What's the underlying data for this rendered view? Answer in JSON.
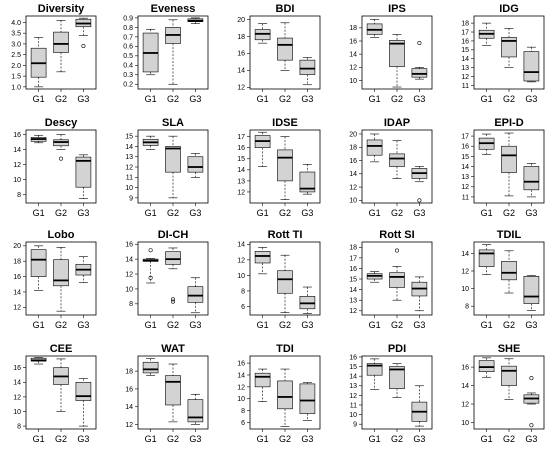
{
  "chart_data": [
    {
      "type": "box",
      "title": "Diversity",
      "categories": [
        "G1",
        "G2",
        "G3"
      ],
      "ylim": [
        0.9,
        4.3
      ],
      "yticks": [
        "1.0",
        "1.5",
        "2.0",
        "2.5",
        "3.0",
        "3.5",
        "4.0"
      ],
      "boxes": [
        {
          "min": 1.0,
          "q1": 1.45,
          "median": 2.1,
          "q3": 2.8,
          "max": 3.3,
          "outliers": []
        },
        {
          "min": 1.7,
          "q1": 2.6,
          "median": 3.0,
          "q3": 3.55,
          "max": 4.1,
          "outliers": []
        },
        {
          "min": 3.4,
          "q1": 3.8,
          "median": 3.95,
          "q3": 4.15,
          "max": 4.2,
          "outliers": [
            2.9
          ]
        }
      ]
    },
    {
      "type": "box",
      "title": "Eveness",
      "categories": [
        "G1",
        "G2",
        "G3"
      ],
      "ylim": [
        0.15,
        0.92
      ],
      "yticks": [
        "0.2",
        "0.3",
        "0.4",
        "0.5",
        "0.6",
        "0.7",
        "0.8",
        "0.9"
      ],
      "boxes": [
        {
          "min": 0.3,
          "q1": 0.33,
          "median": 0.53,
          "q3": 0.74,
          "max": 0.78,
          "outliers": []
        },
        {
          "min": 0.2,
          "q1": 0.63,
          "median": 0.72,
          "q3": 0.8,
          "max": 0.88,
          "outliers": []
        },
        {
          "min": 0.84,
          "q1": 0.86,
          "median": 0.87,
          "q3": 0.89,
          "max": 0.9,
          "outliers": []
        }
      ]
    },
    {
      "type": "box",
      "title": "BDI",
      "categories": [
        "G1",
        "G2",
        "G3"
      ],
      "ylim": [
        11.8,
        20.4
      ],
      "yticks": [
        "12",
        "14",
        "16",
        "18",
        "20"
      ],
      "boxes": [
        {
          "min": 17.2,
          "q1": 17.6,
          "median": 18.3,
          "q3": 18.8,
          "max": 19.5,
          "outliers": []
        },
        {
          "min": 14.0,
          "q1": 15.2,
          "median": 17.0,
          "q3": 17.8,
          "max": 19.6,
          "outliers": []
        },
        {
          "min": 12.3,
          "q1": 13.5,
          "median": 14.2,
          "q3": 15.2,
          "max": 15.5,
          "outliers": []
        }
      ]
    },
    {
      "type": "box",
      "title": "IPS",
      "categories": [
        "G1",
        "G2",
        "G3"
      ],
      "ylim": [
        8.7,
        19.8
      ],
      "yticks": [
        "10",
        "12",
        "14",
        "16",
        "18"
      ],
      "boxes": [
        {
          "min": 16.5,
          "q1": 17.0,
          "median": 17.7,
          "q3": 18.6,
          "max": 19.3,
          "outliers": []
        },
        {
          "min": 9.0,
          "q1": 12.1,
          "median": 15.6,
          "q3": 16.1,
          "max": 17.0,
          "outliers": []
        },
        {
          "min": 10.2,
          "q1": 10.5,
          "median": 11.0,
          "q3": 11.8,
          "max": 12.0,
          "outliers": [
            15.7
          ]
        }
      ]
    },
    {
      "type": "box",
      "title": "IDG",
      "categories": [
        "G1",
        "G2",
        "G3"
      ],
      "ylim": [
        10.6,
        18.8
      ],
      "yticks": [
        "11",
        "12",
        "13",
        "14",
        "15",
        "16",
        "17",
        "18"
      ],
      "boxes": [
        {
          "min": 15.5,
          "q1": 16.3,
          "median": 16.8,
          "q3": 17.2,
          "max": 18.0,
          "outliers": []
        },
        {
          "min": 13.0,
          "q1": 14.2,
          "median": 16.0,
          "q3": 16.4,
          "max": 17.4,
          "outliers": []
        },
        {
          "min": 11.4,
          "q1": 11.5,
          "median": 12.5,
          "q3": 14.8,
          "max": 15.3,
          "outliers": []
        }
      ]
    },
    {
      "type": "box",
      "title": "Descy",
      "categories": [
        "G1",
        "G2",
        "G3"
      ],
      "ylim": [
        6.9,
        16.6
      ],
      "yticks": [
        "8",
        "10",
        "12",
        "14",
        "16"
      ],
      "boxes": [
        {
          "min": 14.9,
          "q1": 15.1,
          "median": 15.4,
          "q3": 15.6,
          "max": 15.9,
          "outliers": []
        },
        {
          "min": 14.0,
          "q1": 14.5,
          "median": 15.0,
          "q3": 15.3,
          "max": 16.0,
          "outliers": [
            12.8
          ]
        },
        {
          "min": 7.5,
          "q1": 9.0,
          "median": 12.5,
          "q3": 13.0,
          "max": 13.3,
          "outliers": []
        }
      ]
    },
    {
      "type": "box",
      "title": "SLA",
      "categories": [
        "G1",
        "G2",
        "G3"
      ],
      "ylim": [
        8.5,
        15.6
      ],
      "yticks": [
        "9",
        "10",
        "11",
        "12",
        "13",
        "14",
        "15"
      ],
      "boxes": [
        {
          "min": 13.7,
          "q1": 14.1,
          "median": 14.4,
          "q3": 14.7,
          "max": 15.0,
          "outliers": []
        },
        {
          "min": 9.0,
          "q1": 11.5,
          "median": 13.8,
          "q3": 14.0,
          "max": 15.0,
          "outliers": []
        },
        {
          "min": 11.0,
          "q1": 11.5,
          "median": 12.0,
          "q3": 13.0,
          "max": 13.3,
          "outliers": []
        }
      ]
    },
    {
      "type": "box",
      "title": "IDSE",
      "categories": [
        "G1",
        "G2",
        "G3"
      ],
      "ylim": [
        11.0,
        17.6
      ],
      "yticks": [
        "12",
        "13",
        "14",
        "15",
        "16",
        "17"
      ],
      "boxes": [
        {
          "min": 14.3,
          "q1": 16.0,
          "median": 16.6,
          "q3": 17.1,
          "max": 17.4,
          "outliers": []
        },
        {
          "min": 11.3,
          "q1": 13.0,
          "median": 15.1,
          "q3": 15.8,
          "max": 17.0,
          "outliers": []
        },
        {
          "min": 11.8,
          "q1": 12.0,
          "median": 12.3,
          "q3": 13.8,
          "max": 14.5,
          "outliers": []
        }
      ]
    },
    {
      "type": "box",
      "title": "IDAP",
      "categories": [
        "G1",
        "G2",
        "G3"
      ],
      "ylim": [
        9.6,
        20.6
      ],
      "yticks": [
        "10",
        "12",
        "14",
        "16",
        "18",
        "20"
      ],
      "boxes": [
        {
          "min": 15.8,
          "q1": 16.8,
          "median": 18.2,
          "q3": 19.1,
          "max": 20.0,
          "outliers": []
        },
        {
          "min": 13.3,
          "q1": 15.1,
          "median": 16.3,
          "q3": 17.0,
          "max": 19.0,
          "outliers": []
        },
        {
          "min": 12.8,
          "q1": 13.3,
          "median": 14.1,
          "q3": 14.8,
          "max": 15.1,
          "outliers": [
            10.0
          ]
        }
      ]
    },
    {
      "type": "box",
      "title": "EPI-D",
      "categories": [
        "G1",
        "G2",
        "G3"
      ],
      "ylim": [
        10.4,
        17.6
      ],
      "yticks": [
        "11",
        "12",
        "13",
        "14",
        "15",
        "16",
        "17"
      ],
      "boxes": [
        {
          "min": 15.2,
          "q1": 15.7,
          "median": 16.3,
          "q3": 16.8,
          "max": 17.2,
          "outliers": []
        },
        {
          "min": 11.1,
          "q1": 13.4,
          "median": 15.1,
          "q3": 16.0,
          "max": 17.3,
          "outliers": []
        },
        {
          "min": 11.0,
          "q1": 11.7,
          "median": 12.5,
          "q3": 14.0,
          "max": 14.3,
          "outliers": []
        }
      ]
    },
    {
      "type": "box",
      "title": "Lobo",
      "categories": [
        "G1",
        "G2",
        "G3"
      ],
      "ylim": [
        11.0,
        20.5
      ],
      "yticks": [
        "12",
        "14",
        "16",
        "18",
        "20"
      ],
      "boxes": [
        {
          "min": 14.2,
          "q1": 16.0,
          "median": 18.2,
          "q3": 19.5,
          "max": 20.0,
          "outliers": []
        },
        {
          "min": 11.5,
          "q1": 14.8,
          "median": 15.5,
          "q3": 18.2,
          "max": 19.8,
          "outliers": []
        },
        {
          "min": 15.2,
          "q1": 16.2,
          "median": 16.9,
          "q3": 17.6,
          "max": 18.6,
          "outliers": []
        }
      ]
    },
    {
      "type": "box",
      "title": "DI-CH",
      "categories": [
        "G1",
        "G2",
        "G3"
      ],
      "ylim": [
        6.5,
        16.3
      ],
      "yticks": [
        "8",
        "10",
        "12",
        "14",
        "16"
      ],
      "boxes": [
        {
          "min": 10.8,
          "q1": 13.7,
          "median": 13.8,
          "q3": 14.0,
          "max": 14.1,
          "outliers": [
            15.2,
            11.5
          ]
        },
        {
          "min": 12.7,
          "q1": 13.3,
          "median": 14.0,
          "q3": 15.0,
          "max": 15.5,
          "outliers": [
            8.6,
            8.3
          ]
        },
        {
          "min": 6.8,
          "q1": 8.2,
          "median": 9.1,
          "q3": 10.3,
          "max": 11.5,
          "outliers": []
        }
      ]
    },
    {
      "type": "box",
      "title": "Rott TI",
      "categories": [
        "G1",
        "G2",
        "G3"
      ],
      "ylim": [
        4.9,
        14.3
      ],
      "yticks": [
        "6",
        "8",
        "10",
        "12",
        "14"
      ],
      "boxes": [
        {
          "min": 10.2,
          "q1": 11.6,
          "median": 12.5,
          "q3": 13.1,
          "max": 13.6,
          "outliers": []
        },
        {
          "min": 5.2,
          "q1": 7.7,
          "median": 9.5,
          "q3": 10.6,
          "max": 12.6,
          "outliers": []
        },
        {
          "min": 5.1,
          "q1": 5.7,
          "median": 6.4,
          "q3": 7.3,
          "max": 8.5,
          "outliers": []
        }
      ]
    },
    {
      "type": "box",
      "title": "Rott SI",
      "categories": [
        "G1",
        "G2",
        "G3"
      ],
      "ylim": [
        11.6,
        18.5
      ],
      "yticks": [
        "12",
        "13",
        "14",
        "15",
        "16",
        "17",
        "18"
      ],
      "boxes": [
        {
          "min": 14.7,
          "q1": 15.0,
          "median": 15.3,
          "q3": 15.5,
          "max": 15.7,
          "outliers": []
        },
        {
          "min": 13.0,
          "q1": 14.2,
          "median": 15.2,
          "q3": 15.6,
          "max": 16.2,
          "outliers": [
            17.7
          ]
        },
        {
          "min": 12.0,
          "q1": 13.4,
          "median": 14.1,
          "q3": 14.7,
          "max": 15.2,
          "outliers": []
        }
      ]
    },
    {
      "type": "box",
      "title": "TDIL",
      "categories": [
        "G1",
        "G2",
        "G3"
      ],
      "ylim": [
        7.0,
        15.3
      ],
      "yticks": [
        "8",
        "10",
        "12",
        "14"
      ],
      "boxes": [
        {
          "min": 11.6,
          "q1": 12.5,
          "median": 14.0,
          "q3": 14.4,
          "max": 15.0,
          "outliers": []
        },
        {
          "min": 9.5,
          "q1": 11.0,
          "median": 11.8,
          "q3": 13.1,
          "max": 14.3,
          "outliers": []
        },
        {
          "min": 7.5,
          "q1": 8.3,
          "median": 9.1,
          "q3": 11.4,
          "max": 11.5,
          "outliers": []
        }
      ]
    },
    {
      "type": "box",
      "title": "CEE",
      "categories": [
        "G1",
        "G2",
        "G3"
      ],
      "ylim": [
        7.6,
        17.6
      ],
      "yticks": [
        "8",
        "10",
        "12",
        "14",
        "16"
      ],
      "boxes": [
        {
          "min": 16.5,
          "q1": 16.9,
          "median": 17.0,
          "q3": 17.3,
          "max": 17.4,
          "outliers": []
        },
        {
          "min": 10.0,
          "q1": 13.7,
          "median": 14.8,
          "q3": 16.0,
          "max": 17.2,
          "outliers": []
        },
        {
          "min": 8.0,
          "q1": 11.5,
          "median": 12.1,
          "q3": 14.0,
          "max": 14.5,
          "outliers": []
        }
      ]
    },
    {
      "type": "box",
      "title": "WAT",
      "categories": [
        "G1",
        "G2",
        "G3"
      ],
      "ylim": [
        11.5,
        19.7
      ],
      "yticks": [
        "12",
        "14",
        "16",
        "18"
      ],
      "boxes": [
        {
          "min": 17.5,
          "q1": 17.8,
          "median": 18.2,
          "q3": 19.0,
          "max": 19.4,
          "outliers": []
        },
        {
          "min": 12.3,
          "q1": 14.2,
          "median": 16.8,
          "q3": 17.5,
          "max": 18.8,
          "outliers": []
        },
        {
          "min": 12.0,
          "q1": 12.3,
          "median": 12.8,
          "q3": 14.8,
          "max": 15.4,
          "outliers": []
        }
      ]
    },
    {
      "type": "box",
      "title": "TDI",
      "categories": [
        "G1",
        "G2",
        "G3"
      ],
      "ylim": [
        4.9,
        17.2
      ],
      "yticks": [
        "6",
        "8",
        "10",
        "12",
        "14",
        "16"
      ],
      "boxes": [
        {
          "min": 9.5,
          "q1": 12.0,
          "median": 13.7,
          "q3": 14.3,
          "max": 15.0,
          "outliers": []
        },
        {
          "min": 5.3,
          "q1": 8.3,
          "median": 10.3,
          "q3": 13.0,
          "max": 15.0,
          "outliers": []
        },
        {
          "min": 6.3,
          "q1": 7.5,
          "median": 9.7,
          "q3": 12.5,
          "max": 12.7,
          "outliers": []
        }
      ]
    },
    {
      "type": "box",
      "title": "PDI",
      "categories": [
        "G1",
        "G2",
        "G3"
      ],
      "ylim": [
        8.5,
        16.1
      ],
      "yticks": [
        "9",
        "10",
        "11",
        "12",
        "13",
        "14",
        "15",
        "16"
      ],
      "boxes": [
        {
          "min": 12.6,
          "q1": 14.1,
          "median": 15.1,
          "q3": 15.3,
          "max": 15.8,
          "outliers": []
        },
        {
          "min": 11.8,
          "q1": 12.7,
          "median": 14.7,
          "q3": 15.0,
          "max": 15.3,
          "outliers": []
        },
        {
          "min": 8.8,
          "q1": 9.3,
          "median": 10.3,
          "q3": 11.3,
          "max": 13.0,
          "outliers": []
        }
      ]
    },
    {
      "type": "box",
      "title": "SHE",
      "categories": [
        "G1",
        "G2",
        "G3"
      ],
      "ylim": [
        9.3,
        17.2
      ],
      "yticks": [
        "10",
        "12",
        "14",
        "16"
      ],
      "boxes": [
        {
          "min": 14.9,
          "q1": 15.5,
          "median": 16.0,
          "q3": 16.7,
          "max": 17.0,
          "outliers": []
        },
        {
          "min": 12.5,
          "q1": 14.0,
          "median": 15.6,
          "q3": 16.1,
          "max": 16.9,
          "outliers": []
        },
        {
          "min": 12.0,
          "q1": 12.1,
          "median": 12.6,
          "q3": 13.0,
          "max": 13.2,
          "outliers": [
            14.8,
            9.7
          ]
        }
      ]
    }
  ]
}
